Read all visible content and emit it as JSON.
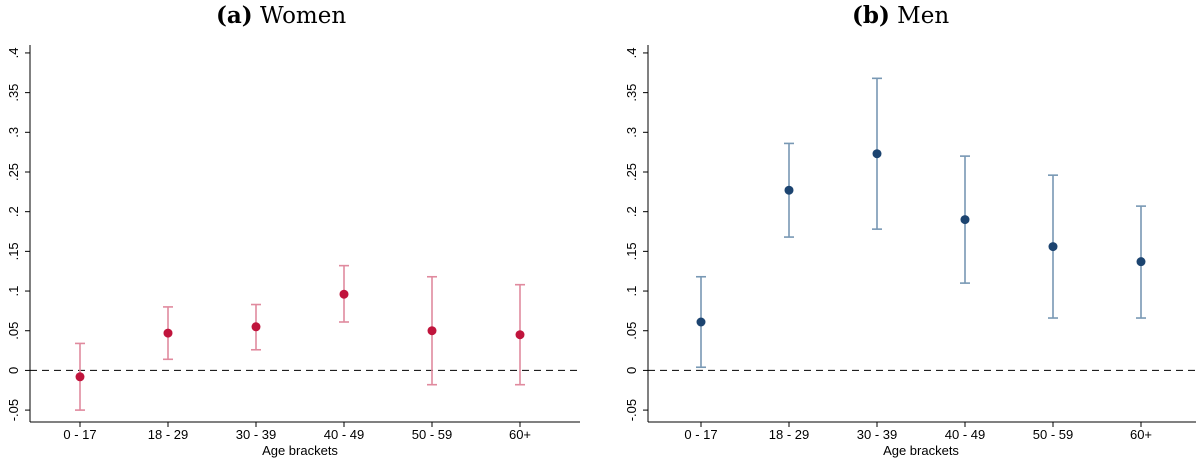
{
  "panels": [
    {
      "label": "(a)",
      "name": "Women"
    },
    {
      "label": "(b)",
      "name": "Men"
    }
  ],
  "chart_data": [
    {
      "type": "scatter",
      "title": "(a) Women",
      "xlabel": "Age brackets",
      "ylabel": "",
      "categories": [
        "0 - 17",
        "18 - 29",
        "30 - 39",
        "40 - 49",
        "50 - 59",
        "60+"
      ],
      "y_ticks": [
        ".4",
        ".35",
        ".3",
        ".25",
        ".2",
        ".15",
        ".1",
        ".05",
        "0",
        "-.05"
      ],
      "ylim": [
        -0.065,
        0.41
      ],
      "reference_line": 0,
      "color": "#c0143c",
      "bar_color": "#e08a9e",
      "series": [
        {
          "values": [
            -0.008,
            0.047,
            0.055,
            0.096,
            0.05,
            0.045
          ],
          "ci_low": [
            -0.05,
            0.014,
            0.026,
            0.061,
            -0.018,
            -0.018
          ],
          "ci_high": [
            0.034,
            0.08,
            0.083,
            0.132,
            0.118,
            0.108
          ]
        }
      ]
    },
    {
      "type": "scatter",
      "title": "(b) Men",
      "xlabel": "Age brackets",
      "ylabel": "",
      "categories": [
        "0 - 17",
        "18 - 29",
        "30 - 39",
        "40 - 49",
        "50 - 59",
        "60+"
      ],
      "y_ticks": [
        ".4",
        ".35",
        ".3",
        ".25",
        ".2",
        ".15",
        ".1",
        ".05",
        "0",
        "-.05"
      ],
      "ylim": [
        -0.065,
        0.41
      ],
      "reference_line": 0,
      "color": "#1c4470",
      "bar_color": "#7898b4",
      "series": [
        {
          "values": [
            0.061,
            0.227,
            0.273,
            0.19,
            0.156,
            0.137
          ],
          "ci_low": [
            0.004,
            0.168,
            0.178,
            0.11,
            0.066,
            0.066
          ],
          "ci_high": [
            0.118,
            0.286,
            0.368,
            0.27,
            0.246,
            0.207
          ]
        }
      ]
    }
  ]
}
